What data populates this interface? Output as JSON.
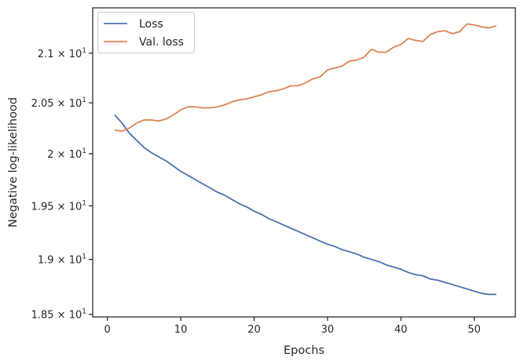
{
  "chart_data": {
    "type": "line",
    "title": "",
    "xlabel": "Epochs",
    "ylabel": "Negative log-likelihood",
    "xlim": [
      -2,
      55.6
    ],
    "ylim": [
      18.477,
      21.467
    ],
    "y_scale": "log",
    "grid": false,
    "legend_position": "top-left",
    "x_ticks": [
      {
        "value": 0,
        "label": "0"
      },
      {
        "value": 10,
        "label": "10"
      },
      {
        "value": 20,
        "label": "20"
      },
      {
        "value": 30,
        "label": "30"
      },
      {
        "value": 40,
        "label": "40"
      },
      {
        "value": 50,
        "label": "50"
      }
    ],
    "y_ticks": [
      {
        "value": 18.5,
        "mantissa": "1.85",
        "times": "×",
        "base": "10",
        "exp": "1"
      },
      {
        "value": 19.0,
        "mantissa": "1.9",
        "times": "×",
        "base": "10",
        "exp": "1"
      },
      {
        "value": 19.5,
        "mantissa": "1.95",
        "times": "×",
        "base": "10",
        "exp": "1"
      },
      {
        "value": 20.0,
        "mantissa": "2",
        "times": "×",
        "base": "10",
        "exp": "1"
      },
      {
        "value": 20.5,
        "mantissa": "2.05",
        "times": "×",
        "base": "10",
        "exp": "1"
      },
      {
        "value": 21.0,
        "mantissa": "2.1",
        "times": "×",
        "base": "10",
        "exp": "1"
      }
    ],
    "x": [
      1,
      2,
      3,
      4,
      5,
      6,
      7,
      8,
      9,
      10,
      11,
      12,
      13,
      14,
      15,
      16,
      17,
      18,
      19,
      20,
      21,
      22,
      23,
      24,
      25,
      26,
      27,
      28,
      29,
      30,
      31,
      32,
      33,
      34,
      35,
      36,
      37,
      38,
      39,
      40,
      41,
      42,
      43,
      44,
      45,
      46,
      47,
      48,
      49,
      50,
      51,
      52,
      53
    ],
    "series": [
      {
        "name": "Loss",
        "color": "#4c72b0",
        "values": [
          20.38,
          20.3,
          20.2,
          20.13,
          20.06,
          20.01,
          19.97,
          19.93,
          19.88,
          19.83,
          19.79,
          19.75,
          19.71,
          19.67,
          19.63,
          19.6,
          19.56,
          19.52,
          19.49,
          19.45,
          19.42,
          19.38,
          19.35,
          19.32,
          19.29,
          19.26,
          19.23,
          19.2,
          19.17,
          19.14,
          19.12,
          19.09,
          19.07,
          19.05,
          19.02,
          19.0,
          18.98,
          18.95,
          18.93,
          18.91,
          18.88,
          18.86,
          18.85,
          18.82,
          18.81,
          18.79,
          18.77,
          18.75,
          18.73,
          18.71,
          18.69,
          18.68,
          18.68
        ]
      },
      {
        "name": "Val. loss",
        "color": "#dd8452",
        "values": [
          20.23,
          20.22,
          20.25,
          20.3,
          20.33,
          20.33,
          20.32,
          20.34,
          20.38,
          20.43,
          20.46,
          20.46,
          20.45,
          20.45,
          20.46,
          20.48,
          20.51,
          20.53,
          20.54,
          20.56,
          20.58,
          20.61,
          20.62,
          20.64,
          20.67,
          20.67,
          20.7,
          20.74,
          20.76,
          20.83,
          20.85,
          20.87,
          20.92,
          20.93,
          20.96,
          21.04,
          21.01,
          21.01,
          21.06,
          21.09,
          21.15,
          21.13,
          21.12,
          21.19,
          21.22,
          21.23,
          21.2,
          21.22,
          21.3,
          21.29,
          21.27,
          21.26,
          21.28
        ]
      }
    ]
  }
}
